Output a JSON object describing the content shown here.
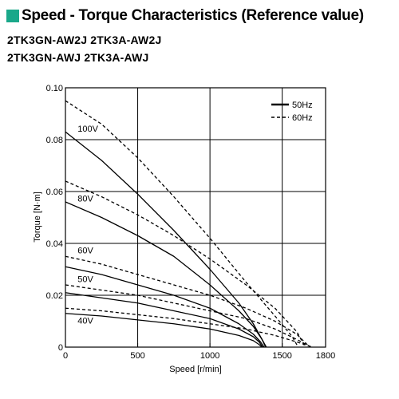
{
  "header": {
    "title": "Speed - Torque Characteristics (Reference value)",
    "accent_color": "#1aa88a"
  },
  "models": {
    "line1": "2TK3GN-AW2J 2TK3A-AW2J",
    "line2": "2TK3GN-AWJ 2TK3A-AWJ"
  },
  "chart_data": {
    "type": "line",
    "xlabel": "Speed [r/min]",
    "ylabel": "Torque [N·m]",
    "xlim": [
      0,
      1800
    ],
    "ylim": [
      0,
      0.1
    ],
    "xticks": [
      0,
      500,
      1000,
      1500,
      1800
    ],
    "xtick_labels": [
      "0",
      "500",
      "1000",
      "1500",
      "1800"
    ],
    "yticks": [
      0,
      0.02,
      0.04,
      0.06,
      0.08,
      0.1
    ],
    "ytick_labels": [
      "0",
      "0.02",
      "0.04",
      "0.06",
      "0.08",
      "0.10"
    ],
    "grid": true,
    "legend": {
      "position": "top-right",
      "entries": [
        {
          "label": "50Hz",
          "style": "solid"
        },
        {
          "label": "60Hz",
          "style": "dashed"
        }
      ]
    },
    "voltage_labels": [
      {
        "text": "100V",
        "x": 40,
        "y": 0.0825
      },
      {
        "text": "80V",
        "x": 40,
        "y": 0.0555
      },
      {
        "text": "60V",
        "x": 40,
        "y": 0.0355
      },
      {
        "text": "50V",
        "x": 40,
        "y": 0.0245
      },
      {
        "text": "40V",
        "x": 40,
        "y": 0.0085
      }
    ],
    "series": [
      {
        "name": "100V",
        "frequency": "50Hz",
        "style": "solid",
        "points": [
          [
            0,
            0.083
          ],
          [
            250,
            0.072
          ],
          [
            500,
            0.059
          ],
          [
            750,
            0.045
          ],
          [
            1000,
            0.03
          ],
          [
            1200,
            0.017
          ],
          [
            1300,
            0.009
          ],
          [
            1360,
            0.003
          ],
          [
            1390,
            0
          ]
        ]
      },
      {
        "name": "100V",
        "frequency": "60Hz",
        "style": "dashed",
        "points": [
          [
            0,
            0.095
          ],
          [
            250,
            0.086
          ],
          [
            500,
            0.073
          ],
          [
            750,
            0.058
          ],
          [
            1000,
            0.042
          ],
          [
            1250,
            0.025
          ],
          [
            1450,
            0.012
          ],
          [
            1570,
            0.004
          ],
          [
            1610,
            0
          ]
        ]
      },
      {
        "name": "80V",
        "frequency": "50Hz",
        "style": "solid",
        "points": [
          [
            0,
            0.056
          ],
          [
            250,
            0.05
          ],
          [
            500,
            0.043
          ],
          [
            750,
            0.035
          ],
          [
            1000,
            0.024
          ],
          [
            1200,
            0.014
          ],
          [
            1300,
            0.008
          ],
          [
            1360,
            0.003
          ],
          [
            1385,
            0
          ]
        ]
      },
      {
        "name": "80V",
        "frequency": "60Hz",
        "style": "dashed",
        "points": [
          [
            0,
            0.064
          ],
          [
            250,
            0.058
          ],
          [
            500,
            0.051
          ],
          [
            750,
            0.043
          ],
          [
            1000,
            0.034
          ],
          [
            1250,
            0.024
          ],
          [
            1450,
            0.015
          ],
          [
            1600,
            0.006
          ],
          [
            1660,
            0
          ]
        ]
      },
      {
        "name": "60V",
        "frequency": "50Hz",
        "style": "solid",
        "points": [
          [
            0,
            0.031
          ],
          [
            250,
            0.028
          ],
          [
            500,
            0.024
          ],
          [
            750,
            0.02
          ],
          [
            1000,
            0.015
          ],
          [
            1200,
            0.009
          ],
          [
            1300,
            0.005
          ],
          [
            1350,
            0.002
          ],
          [
            1375,
            0
          ]
        ]
      },
      {
        "name": "60V",
        "frequency": "60Hz",
        "style": "dashed",
        "points": [
          [
            0,
            0.035
          ],
          [
            250,
            0.032
          ],
          [
            500,
            0.028
          ],
          [
            750,
            0.024
          ],
          [
            1000,
            0.02
          ],
          [
            1250,
            0.015
          ],
          [
            1450,
            0.01
          ],
          [
            1600,
            0.005
          ],
          [
            1690,
            0
          ]
        ]
      },
      {
        "name": "50V",
        "frequency": "50Hz",
        "style": "solid",
        "points": [
          [
            0,
            0.021
          ],
          [
            250,
            0.019
          ],
          [
            500,
            0.017
          ],
          [
            750,
            0.014
          ],
          [
            1000,
            0.011
          ],
          [
            1200,
            0.007
          ],
          [
            1300,
            0.004
          ],
          [
            1340,
            0.002
          ],
          [
            1365,
            0
          ]
        ]
      },
      {
        "name": "50V",
        "frequency": "60Hz",
        "style": "dashed",
        "points": [
          [
            0,
            0.024
          ],
          [
            250,
            0.022
          ],
          [
            500,
            0.02
          ],
          [
            750,
            0.017
          ],
          [
            1000,
            0.014
          ],
          [
            1250,
            0.011
          ],
          [
            1450,
            0.007
          ],
          [
            1600,
            0.003
          ],
          [
            1700,
            0
          ]
        ]
      },
      {
        "name": "40V",
        "frequency": "50Hz",
        "style": "solid",
        "points": [
          [
            0,
            0.013
          ],
          [
            250,
            0.012
          ],
          [
            500,
            0.0105
          ],
          [
            750,
            0.009
          ],
          [
            1000,
            0.007
          ],
          [
            1200,
            0.0045
          ],
          [
            1300,
            0.0025
          ],
          [
            1340,
            0.001
          ],
          [
            1360,
            0
          ]
        ]
      },
      {
        "name": "40V",
        "frequency": "60Hz",
        "style": "dashed",
        "points": [
          [
            0,
            0.015
          ],
          [
            250,
            0.014
          ],
          [
            500,
            0.0125
          ],
          [
            750,
            0.011
          ],
          [
            1000,
            0.009
          ],
          [
            1250,
            0.007
          ],
          [
            1450,
            0.0045
          ],
          [
            1600,
            0.002
          ],
          [
            1710,
            0
          ]
        ]
      }
    ]
  }
}
